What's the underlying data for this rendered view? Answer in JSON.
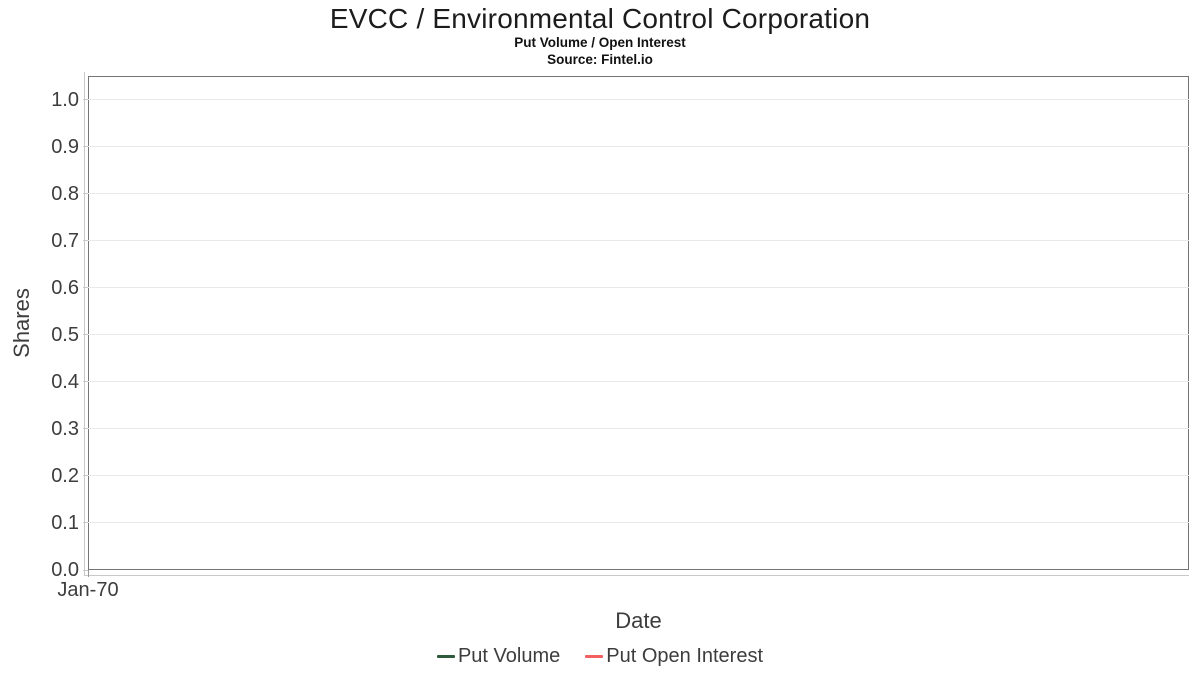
{
  "header": {
    "title": "EVCC / Environmental Control Corporation",
    "subtitle": "Put Volume / Open Interest",
    "source": "Source: Fintel.io"
  },
  "chart_data": {
    "type": "line",
    "title": "EVCC / Environmental Control Corporation",
    "subtitle": "Put Volume / Open Interest",
    "source": "Source: Fintel.io",
    "xlabel": "Date",
    "ylabel": "Shares",
    "x_ticks": [
      "Jan-70"
    ],
    "y_ticks": [
      "1.0",
      "0.9",
      "0.8",
      "0.7",
      "0.6",
      "0.5",
      "0.4",
      "0.3",
      "0.2",
      "0.1",
      "0.0"
    ],
    "ylim": [
      0.0,
      1.05
    ],
    "grid": "horizontal",
    "legend_position": "bottom-center",
    "series": [
      {
        "name": "Put Volume",
        "color": "#2e5a3c",
        "x": [],
        "values": []
      },
      {
        "name": "Put Open Interest",
        "color": "#f4605f",
        "x": [],
        "values": []
      }
    ]
  },
  "colors": {
    "background": "#ffffff",
    "plot_border": "#757575",
    "gridline": "#e9e9e9",
    "axis_line": "#c9c9c9",
    "tick_label": "#3d3d3d",
    "title_text": "#1c1c1c"
  }
}
